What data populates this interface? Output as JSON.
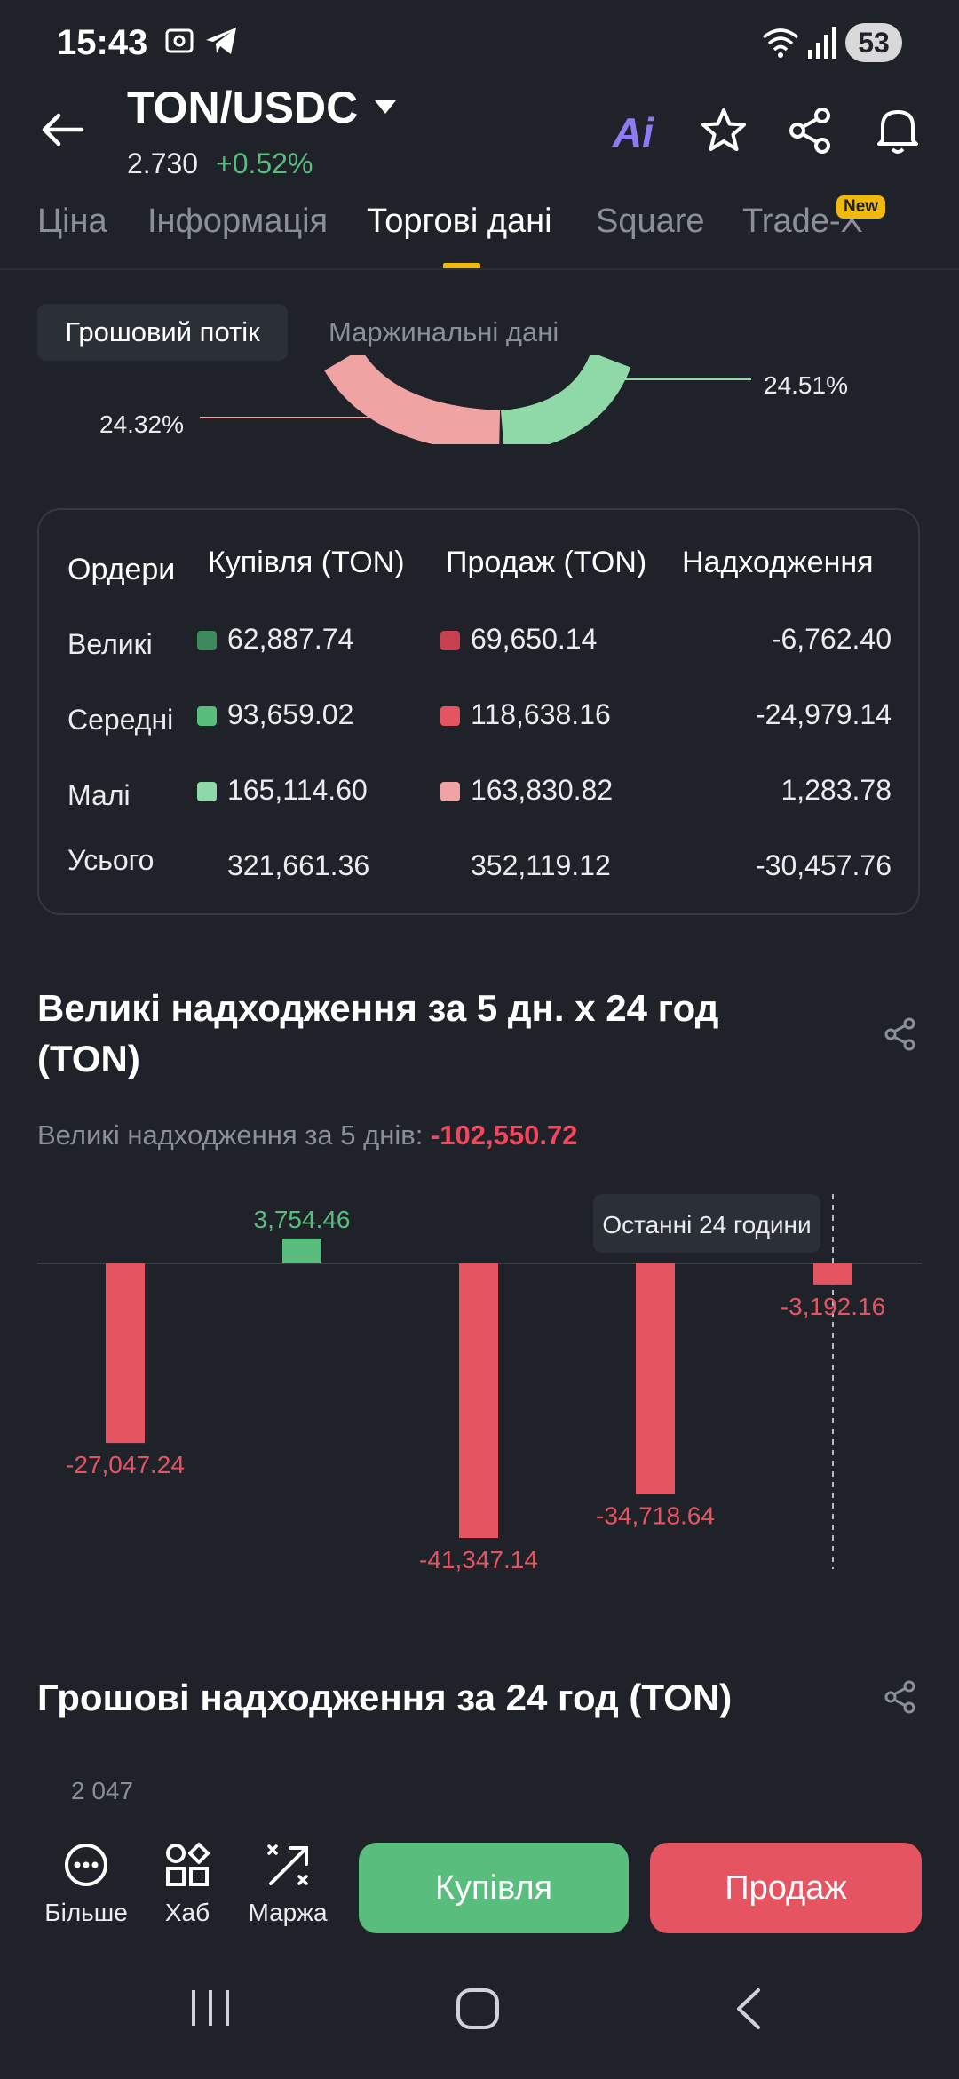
{
  "status_bar": {
    "time": "15:43",
    "battery": "53"
  },
  "header": {
    "pair": "TON/USDC",
    "price": "2.730",
    "change": "+0.52%",
    "ai_label": "Ai"
  },
  "tabs": [
    {
      "label": "Ціна"
    },
    {
      "label": "Інформація"
    },
    {
      "label": "Торгові дані"
    },
    {
      "label": "Square"
    },
    {
      "label": "Trade-X"
    }
  ],
  "new_badge": "New",
  "subtabs": {
    "flow": "Грошовий потік",
    "margin": "Маржинальні дані"
  },
  "donut": {
    "left_label": "24.32%",
    "right_label": "24.51%"
  },
  "orders_table": {
    "headers": [
      "Ордери",
      "Купівля (TON)",
      "Продаж (TON)",
      "Надходження"
    ],
    "rows": [
      {
        "label": "Великі",
        "buy": "62,887.74",
        "sell": "69,650.14",
        "inflow": "-6,762.40",
        "buy_color": "#3d8a5e",
        "sell_color": "#c9404f"
      },
      {
        "label": "Середні",
        "buy": "93,659.02",
        "sell": "118,638.16",
        "inflow": "-24,979.14",
        "buy_color": "#58bd7d",
        "sell_color": "#e55561"
      },
      {
        "label": "Малі",
        "buy": "165,114.60",
        "sell": "163,830.82",
        "inflow": "1,283.78",
        "buy_color": "#8fd8a8",
        "sell_color": "#f0a3a3"
      },
      {
        "label": "Усього",
        "buy": "321,661.36",
        "sell": "352,119.12",
        "inflow": "-30,457.76"
      }
    ]
  },
  "big_inflow": {
    "title": "Великі надходження за 5 дн. x 24 год (TON)",
    "subtitle_label": "Великі надходження за 5 днів:",
    "subtitle_value": "-102,550.72"
  },
  "chart_data": {
    "type": "bar",
    "values": [
      -27047.24,
      3754.46,
      -41347.14,
      -34718.64,
      -3192.16
    ],
    "labels": [
      "-27,047.24",
      "3,754.46",
      "-41,347.14",
      "-34,718.64",
      "-3,192.16"
    ],
    "tooltip": "Останні 24 години",
    "colors": {
      "positive": "#58bd7d",
      "negative": "#e55561"
    }
  },
  "inflow_24h": {
    "title": "Грошові надходження за 24 год (TON)",
    "first_tick": "2 047"
  },
  "bottom_bar": {
    "more": "Більше",
    "hub": "Хаб",
    "margin": "Маржа",
    "buy": "Купівля",
    "sell": "Продаж"
  }
}
